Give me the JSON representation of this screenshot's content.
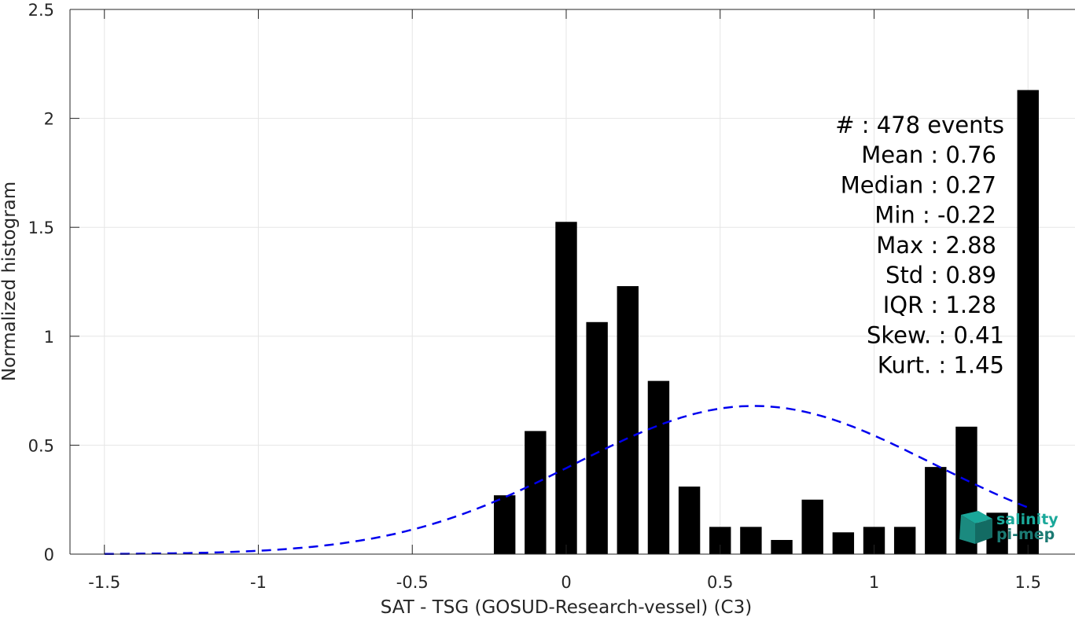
{
  "chart_data": {
    "type": "bar",
    "xlabel": "SAT - TSG (GOSUD-Research-vessel) (C3)",
    "ylabel": "Normalized histogram",
    "xlim": [
      -1.6,
      1.6
    ],
    "ylim": [
      0,
      2.5
    ],
    "xticks": [
      -1.5,
      -1,
      -0.5,
      0,
      0.5,
      1,
      1.5
    ],
    "xtick_labels": [
      "-1.5",
      "-1",
      "-0.5",
      "0",
      "0.5",
      "1",
      "1.5"
    ],
    "yticks": [
      0,
      0.5,
      1,
      1.5,
      2,
      2.5
    ],
    "ytick_labels": [
      "0",
      "0.5",
      "1",
      "1.5",
      "2",
      "2.5"
    ],
    "grid": true,
    "bar_width": 0.07,
    "bars": [
      {
        "x": -0.2,
        "y": 0.27
      },
      {
        "x": -0.1,
        "y": 0.565
      },
      {
        "x": 0.0,
        "y": 1.525
      },
      {
        "x": 0.1,
        "y": 1.065
      },
      {
        "x": 0.2,
        "y": 1.23
      },
      {
        "x": 0.3,
        "y": 0.795
      },
      {
        "x": 0.4,
        "y": 0.31
      },
      {
        "x": 0.5,
        "y": 0.125
      },
      {
        "x": 0.6,
        "y": 0.125
      },
      {
        "x": 0.7,
        "y": 0.065
      },
      {
        "x": 0.8,
        "y": 0.25
      },
      {
        "x": 0.9,
        "y": 0.1
      },
      {
        "x": 1.0,
        "y": 0.125
      },
      {
        "x": 1.1,
        "y": 0.125
      },
      {
        "x": 1.2,
        "y": 0.4
      },
      {
        "x": 1.3,
        "y": 0.585
      },
      {
        "x": 1.4,
        "y": 0.19
      },
      {
        "x": 1.5,
        "y": 2.13
      }
    ],
    "bar_color": "#000000",
    "fit_curve": {
      "style": "dashed",
      "color": "#0000ee",
      "mean": 0.61,
      "std": 0.585,
      "peak": 0.68,
      "x_range": [
        -1.5,
        1.5
      ]
    },
    "stats_lines": [
      "#  : 478 events",
      "Mean : 0.76",
      "Median : 0.27",
      "Min : -0.22",
      "Max : 2.88",
      "Std : 0.89",
      "IQR : 1.28",
      "Skew. : 0.41",
      "Kurt. : 1.45"
    ],
    "logo": {
      "line1": "salinity",
      "line2": "pi-mep",
      "color_top": "#1aa89a",
      "color_bottom": "#1b7a73"
    }
  }
}
